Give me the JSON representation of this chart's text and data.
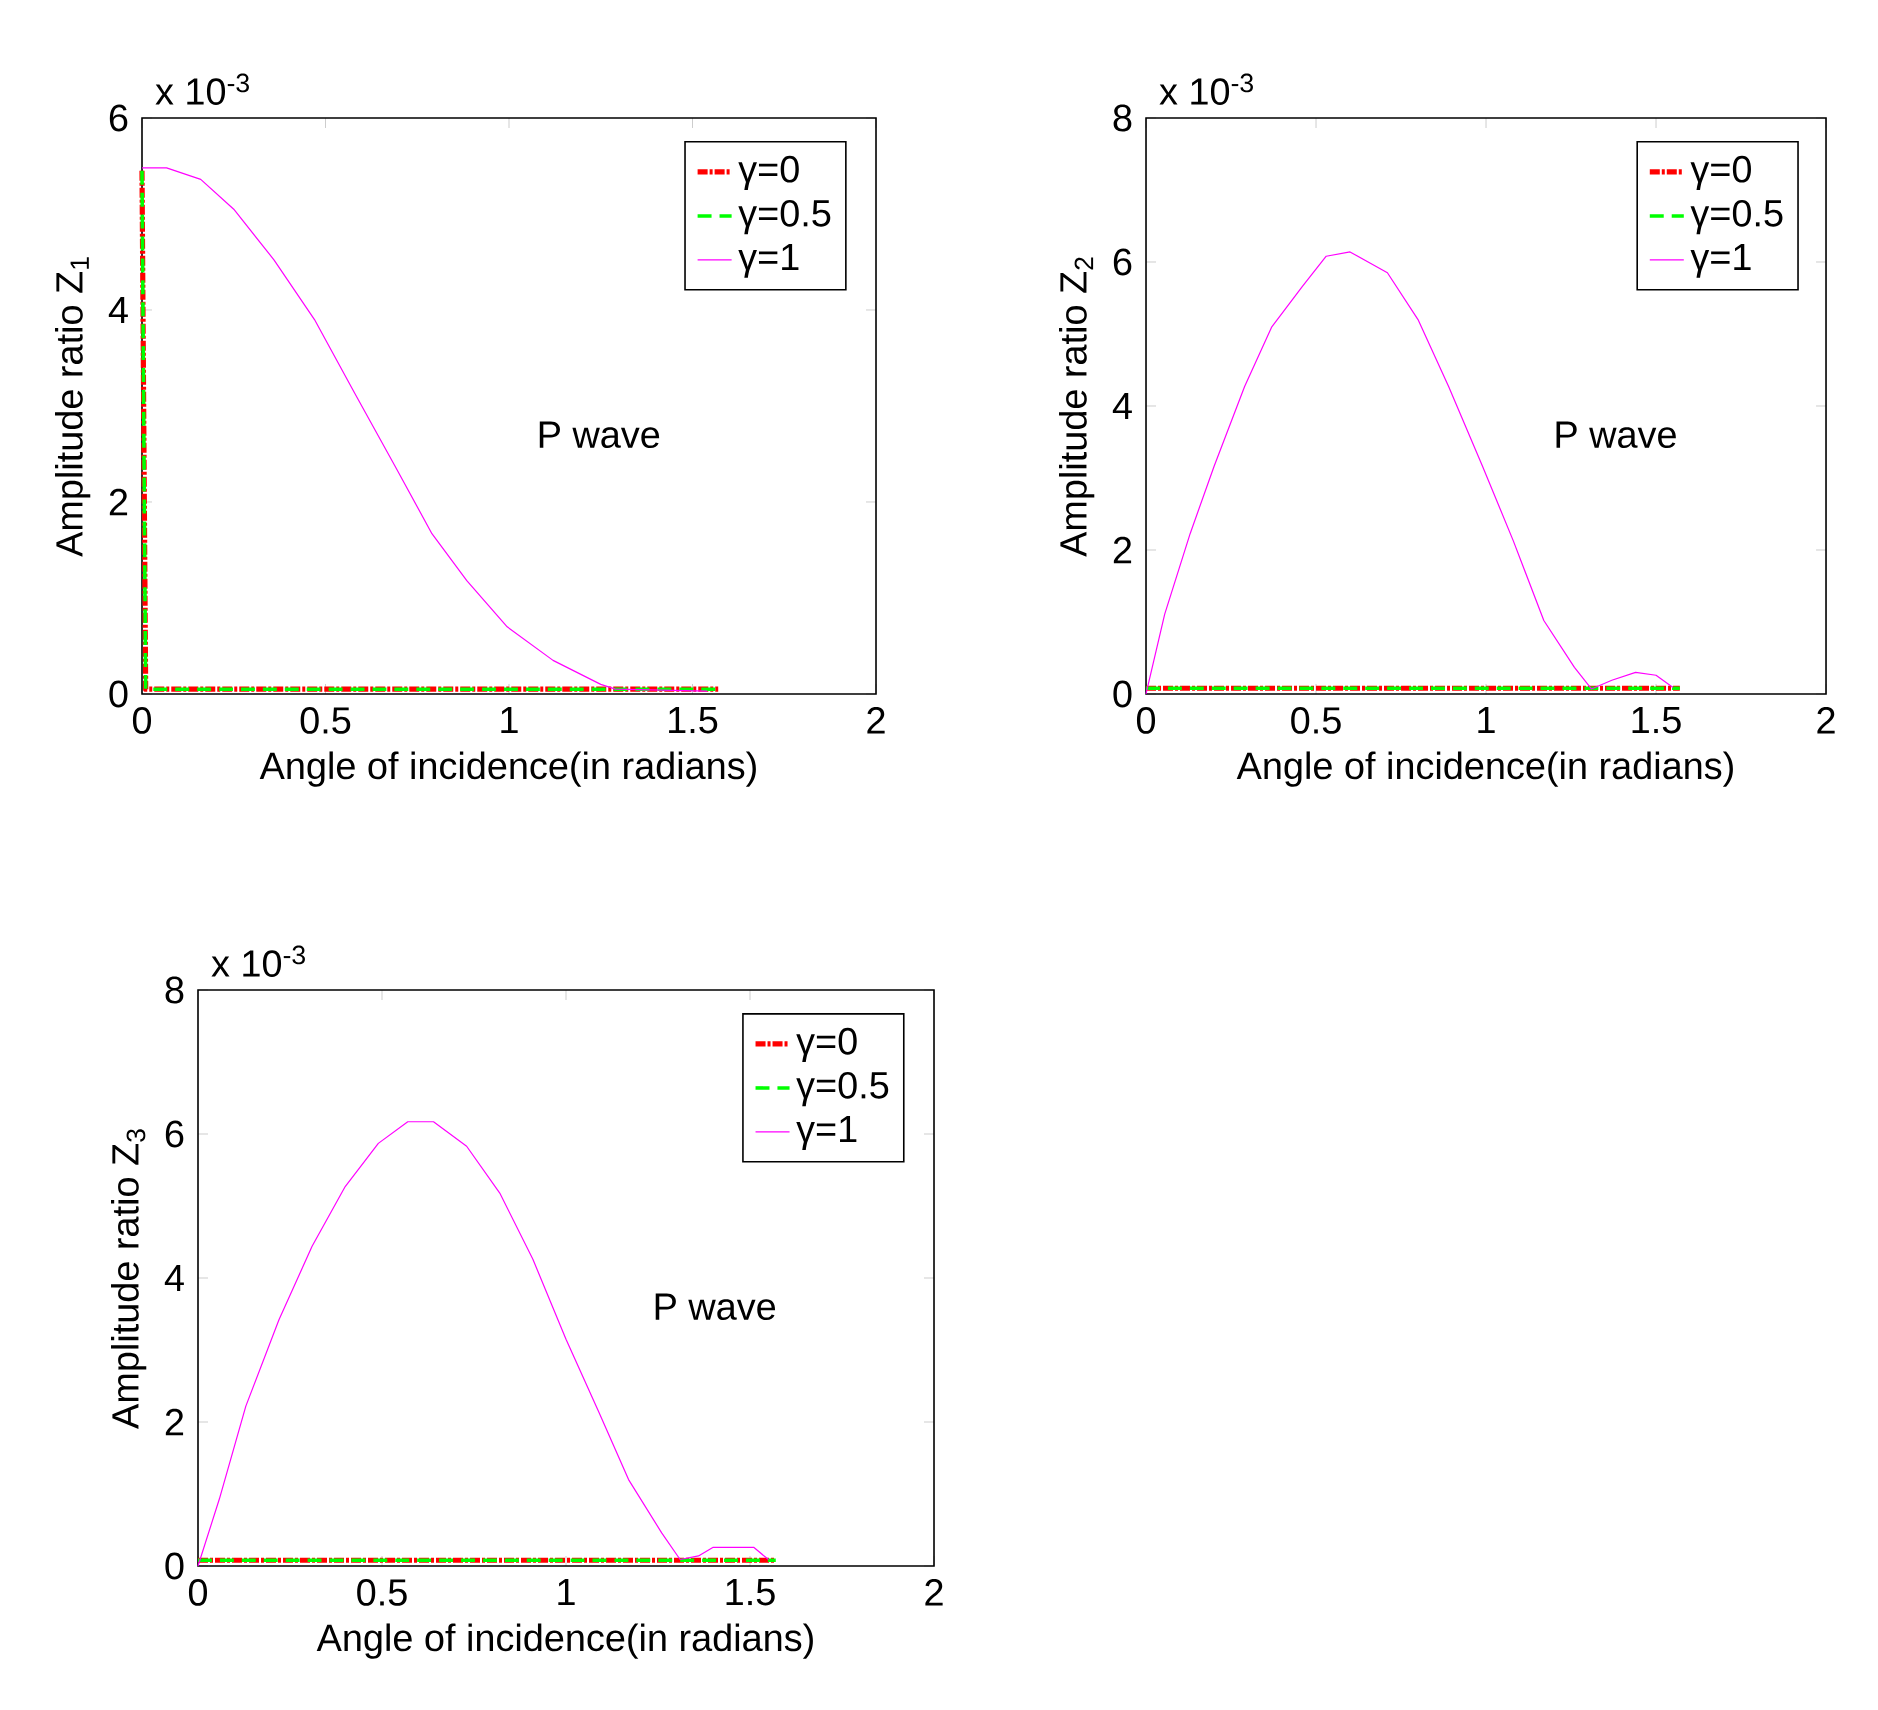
{
  "chart_data": [
    {
      "type": "line",
      "xlabel": "Angle of incidence(in radians)",
      "ylabel": "Amplitude ratio  Z$_{1}$",
      "annotations": [
        "x 10$^{-3}$",
        "P wave"
      ],
      "xlim": [
        0,
        2
      ],
      "xticks": [
        0,
        0.5,
        1,
        1.5,
        2
      ],
      "ylim": [
        0,
        6
      ],
      "yticks": [
        0,
        2,
        4,
        6
      ],
      "legend": "top right",
      "series": [
        {
          "name": "γ=0",
          "color": "#ff0000",
          "line_style": "dashdot",
          "x": [
            0,
            0.01,
            1.57
          ],
          "values": [
            5.45,
            0.05,
            0.05
          ]
        },
        {
          "name": "γ=0.5",
          "color": "#00ff00",
          "line_style": "dashed",
          "x": [
            0,
            0.01,
            1.57
          ],
          "values": [
            5.45,
            0.05,
            0.05
          ]
        },
        {
          "name": "γ=1",
          "color": "#ff00ff",
          "line_style": "solid",
          "x": [
            0,
            0.067,
            0.16,
            0.25,
            0.36,
            0.47,
            0.58,
            0.69,
            0.79,
            0.885,
            0.995,
            1.12,
            1.25,
            1.29,
            1.54
          ],
          "values": [
            5.48,
            5.48,
            5.36,
            5.05,
            4.52,
            3.9,
            3.13,
            2.37,
            1.67,
            1.18,
            0.7,
            0.35,
            0.1,
            0.05,
            0.03
          ]
        }
      ]
    },
    {
      "type": "line",
      "xlabel": "Angle of incidence(in radians)",
      "ylabel": "Amplitude ratio  Z$_{2}$",
      "annotations": [
        "x 10$^{-3}$",
        "P wave"
      ],
      "xlim": [
        0,
        2
      ],
      "xticks": [
        0,
        0.5,
        1,
        1.5,
        2
      ],
      "ylim": [
        0,
        8
      ],
      "yticks": [
        0,
        2,
        4,
        6,
        8
      ],
      "legend": "top right",
      "series": [
        {
          "name": "γ=0",
          "color": "#ff0000",
          "line_style": "dashdot",
          "x": [
            0,
            1.57
          ],
          "values": [
            0.08,
            0.08
          ]
        },
        {
          "name": "γ=0.5",
          "color": "#00ff00",
          "line_style": "dashed",
          "x": [
            0,
            1.57
          ],
          "values": [
            0.08,
            0.08
          ]
        },
        {
          "name": "γ=1",
          "color": "#ff00ff",
          "line_style": "solid",
          "x": [
            0,
            0.055,
            0.13,
            0.2,
            0.29,
            0.37,
            0.46,
            0.53,
            0.6,
            0.71,
            0.8,
            0.89,
            0.99,
            1.08,
            1.17,
            1.26,
            1.31,
            1.37,
            1.44,
            1.5,
            1.55
          ],
          "values": [
            0,
            1.11,
            2.23,
            3.16,
            4.27,
            5.1,
            5.66,
            6.08,
            6.14,
            5.85,
            5.2,
            4.27,
            3.16,
            2.13,
            1.02,
            0.37,
            0.07,
            0.19,
            0.3,
            0.26,
            0.09
          ]
        }
      ]
    },
    {
      "type": "line",
      "xlabel": "Angle of incidence(in radians)",
      "ylabel": "Amplitude ratio  Z$_{3}$",
      "annotations": [
        "x 10$^{-3}$",
        "P wave"
      ],
      "xlim": [
        0,
        2
      ],
      "xticks": [
        0,
        0.5,
        1,
        1.5,
        2
      ],
      "ylim": [
        0,
        8
      ],
      "yticks": [
        0,
        2,
        4,
        6,
        8
      ],
      "legend": "top right",
      "series": [
        {
          "name": "γ=0",
          "color": "#ff0000",
          "line_style": "dashdot",
          "x": [
            0,
            1.57
          ],
          "values": [
            0.08,
            0.08
          ]
        },
        {
          "name": "γ=0.5",
          "color": "#00ff00",
          "line_style": "dashed",
          "x": [
            0,
            1.57
          ],
          "values": [
            0.08,
            0.08
          ]
        },
        {
          "name": "γ=1",
          "color": "#ff00ff",
          "line_style": "solid",
          "x": [
            0,
            0.058,
            0.13,
            0.22,
            0.31,
            0.4,
            0.49,
            0.57,
            0.64,
            0.73,
            0.82,
            0.91,
            1.0,
            1.09,
            1.17,
            1.26,
            1.31,
            1.36,
            1.4,
            1.51,
            1.55
          ],
          "values": [
            0,
            0.93,
            2.22,
            3.42,
            4.44,
            5.27,
            5.87,
            6.17,
            6.17,
            5.83,
            5.18,
            4.26,
            3.15,
            2.13,
            1.2,
            0.46,
            0.09,
            0.14,
            0.26,
            0.26,
            0.09
          ]
        }
      ]
    }
  ]
}
